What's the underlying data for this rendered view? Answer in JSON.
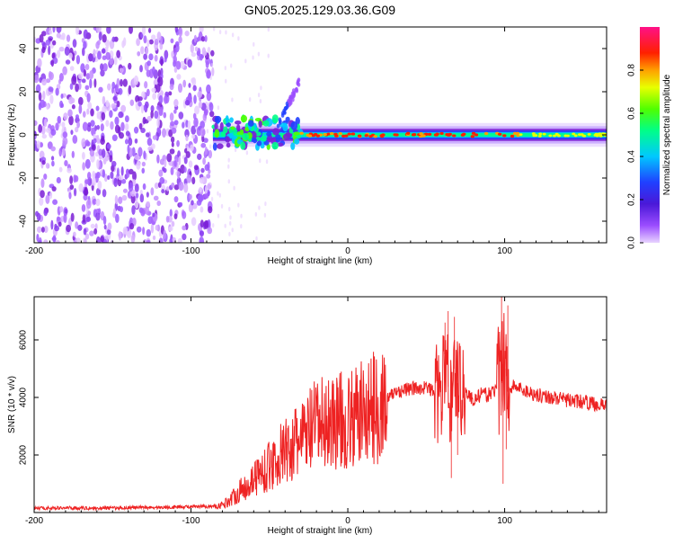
{
  "title": "GN05.2025.129.03.36.G09",
  "chart_data": [
    {
      "type": "heatmap",
      "xlabel": "Height of straight line (km)",
      "ylabel": "Frequency (Hz)",
      "xlim": [
        -200,
        165
      ],
      "ylim": [
        -50,
        50
      ],
      "xticks": [
        -200,
        -100,
        0,
        100
      ],
      "yticks": [
        -40,
        -20,
        0,
        20,
        40
      ],
      "colorbar": {
        "label": "Normalized spectral amplitude",
        "range": [
          0,
          1
        ],
        "ticks": [
          0.0,
          0.2,
          0.4,
          0.6,
          0.8
        ],
        "tick_labels": [
          "0.0",
          "0.2",
          "0.4",
          "0.6",
          "0.8"
        ],
        "colors": [
          "#d9b3ff",
          "#7a1fd6",
          "#3a2bff",
          "#00c8ff",
          "#00ff80",
          "#60ff00",
          "#ffff00",
          "#ff8000",
          "#ff0000",
          "#ff1080"
        ]
      },
      "regions": [
        {
          "desc": "noise",
          "x_range": [
            -200,
            -86
          ],
          "freq_range": [
            -50,
            50
          ],
          "amplitude": 0.1
        },
        {
          "desc": "ray acquisition",
          "x_range": [
            -86,
            -30
          ],
          "freq_range": [
            -8,
            10
          ],
          "amplitude": 0.35
        },
        {
          "desc": "upward branch",
          "x_range": [
            -45,
            -30
          ],
          "freq_range": [
            5,
            25
          ],
          "amplitude": 0.15
        },
        {
          "desc": "stable carrier",
          "x_range": [
            -30,
            165
          ],
          "freq_center": 0,
          "amplitude": 0.95
        }
      ]
    },
    {
      "type": "line",
      "xlabel": "Height of straight line (km)",
      "ylabel": "SNR (10 * v/v)",
      "xlim": [
        -200,
        165
      ],
      "ylim": [
        0,
        7500
      ],
      "xticks": [
        -200,
        -100,
        0,
        100
      ],
      "yticks": [
        2000,
        4000,
        6000
      ],
      "color": "#ee2222",
      "series": [
        {
          "x": [
            -200,
            -180,
            -160,
            -140,
            -120,
            -100,
            -90,
            -80,
            -75,
            -70,
            -65,
            -60,
            -55,
            -50,
            -45,
            -40,
            -35,
            -30,
            -25,
            -20,
            -15,
            -10,
            -5,
            0,
            5,
            10,
            15,
            20,
            25,
            30,
            40,
            50,
            55,
            60,
            62,
            65,
            68,
            70,
            75,
            80,
            85,
            90,
            95,
            98,
            100,
            102,
            105,
            110,
            120,
            130,
            140,
            150,
            160,
            165
          ],
          "y": [
            150,
            160,
            150,
            170,
            180,
            200,
            210,
            250,
            450,
            700,
            900,
            1200,
            1400,
            1600,
            1900,
            2100,
            2300,
            2500,
            2800,
            3000,
            3100,
            3200,
            3200,
            3100,
            3300,
            3500,
            3600,
            3700,
            3900,
            4200,
            4300,
            4350,
            4200,
            4000,
            5500,
            3800,
            5000,
            4500,
            4200,
            3900,
            4100,
            4100,
            4300,
            4500,
            5800,
            4200,
            4400,
            4300,
            4100,
            4000,
            3900,
            3850,
            3750,
            3700
          ]
        }
      ]
    }
  ]
}
